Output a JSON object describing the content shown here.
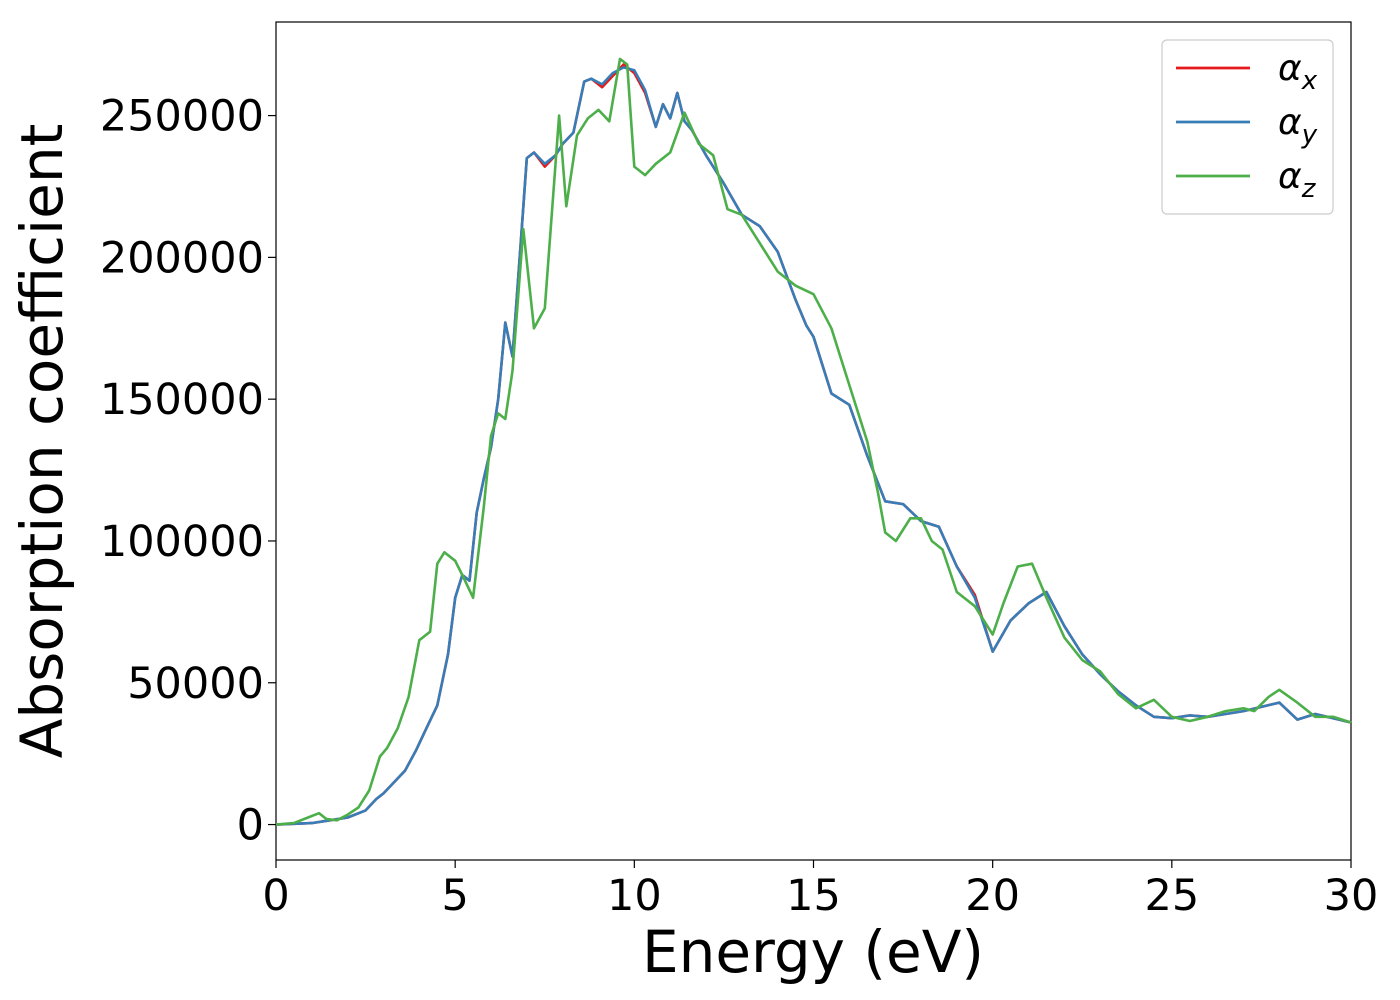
{
  "chart_data": {
    "type": "line",
    "title": "",
    "xlabel": "Energy (eV)",
    "ylabel": "Absorption coefficient",
    "xlim": [
      0,
      30
    ],
    "ylim": [
      -12500,
      283000
    ],
    "xticks": [
      0,
      5,
      10,
      15,
      20,
      25,
      30
    ],
    "yticks": [
      0,
      50000,
      100000,
      150000,
      200000,
      250000
    ],
    "xtick_labels": [
      "0",
      "5",
      "10",
      "15",
      "20",
      "25",
      "30"
    ],
    "ytick_labels": [
      "0",
      "50000",
      "100000",
      "150000",
      "200000",
      "250000"
    ],
    "grid": false,
    "legend_position": "top-right",
    "series": [
      {
        "name": "α",
        "subscript": "x",
        "color": "#e41a1c",
        "x": [
          0,
          1,
          1.5,
          2,
          2.5,
          2.8,
          3,
          3.3,
          3.6,
          3.9,
          4.2,
          4.5,
          4.8,
          5,
          5.2,
          5.4,
          5.6,
          5.8,
          6,
          6.2,
          6.4,
          6.6,
          6.8,
          7,
          7.2,
          7.5,
          7.8,
          8,
          8.3,
          8.6,
          8.8,
          9.1,
          9.4,
          9.7,
          10,
          10.3,
          10.6,
          10.8,
          11,
          11.2,
          11.4,
          11.6,
          12,
          12.5,
          13,
          13.5,
          14,
          14.5,
          14.8,
          15,
          15.5,
          16,
          16.5,
          17,
          17.5,
          18,
          18.5,
          19,
          19.5,
          20,
          20.5,
          21,
          21.5,
          22,
          22.5,
          23,
          23.5,
          24,
          24.5,
          25,
          25.5,
          26,
          26.5,
          27,
          27.5,
          28,
          28.5,
          29,
          29.5,
          30
        ],
        "y": [
          0,
          500,
          1500,
          2500,
          5000,
          9000,
          11000,
          15000,
          19000,
          26000,
          34000,
          42000,
          60000,
          80000,
          88000,
          86000,
          110000,
          122000,
          133000,
          150000,
          177000,
          165000,
          200000,
          235000,
          237000,
          232000,
          236000,
          240000,
          244000,
          262000,
          263000,
          260000,
          264000,
          268000,
          265000,
          258000,
          246000,
          254000,
          249000,
          258000,
          248000,
          245000,
          236000,
          226000,
          215000,
          211000,
          202000,
          185000,
          176000,
          172000,
          152000,
          148000,
          130000,
          114000,
          113000,
          107000,
          105000,
          91000,
          81000,
          61000,
          72000,
          78000,
          82000,
          70000,
          60000,
          53000,
          47000,
          42000,
          38000,
          37500,
          38500,
          38000,
          39000,
          40000,
          41500,
          43000,
          37000,
          39000,
          37500,
          36000
        ]
      },
      {
        "name": "α",
        "subscript": "y",
        "color": "#377eb8",
        "x": [
          0,
          1,
          1.5,
          2,
          2.5,
          2.8,
          3,
          3.3,
          3.6,
          3.9,
          4.2,
          4.5,
          4.8,
          5,
          5.2,
          5.4,
          5.6,
          5.8,
          6,
          6.2,
          6.4,
          6.6,
          6.8,
          7,
          7.2,
          7.5,
          7.8,
          8,
          8.3,
          8.6,
          8.8,
          9.1,
          9.4,
          9.7,
          10,
          10.3,
          10.6,
          10.8,
          11,
          11.2,
          11.4,
          11.6,
          12,
          12.5,
          13,
          13.5,
          14,
          14.5,
          14.8,
          15,
          15.5,
          16,
          16.5,
          17,
          17.5,
          18,
          18.5,
          19,
          19.5,
          20,
          20.5,
          21,
          21.5,
          22,
          22.5,
          23,
          23.5,
          24,
          24.5,
          25,
          25.5,
          26,
          26.5,
          27,
          27.5,
          28,
          28.5,
          29,
          29.5,
          30
        ],
        "y": [
          0,
          500,
          1500,
          2500,
          5000,
          9000,
          11000,
          15000,
          19000,
          26000,
          34000,
          42000,
          60000,
          80000,
          88000,
          86000,
          110000,
          122000,
          133000,
          150000,
          177000,
          165000,
          200000,
          235000,
          237000,
          233000,
          236000,
          240000,
          244000,
          262000,
          263000,
          261000,
          265000,
          267000,
          266000,
          259000,
          246000,
          254000,
          249000,
          258000,
          248000,
          245000,
          236000,
          226000,
          215000,
          211000,
          202000,
          185000,
          176000,
          172000,
          152000,
          148000,
          130000,
          114000,
          113000,
          107000,
          105000,
          91000,
          80000,
          61000,
          72000,
          78000,
          82000,
          70000,
          60000,
          53000,
          47000,
          42000,
          38000,
          37500,
          38500,
          38000,
          39000,
          40000,
          41500,
          43000,
          37000,
          39000,
          37500,
          36000
        ]
      },
      {
        "name": "α",
        "subscript": "z",
        "color": "#4daf4a",
        "x": [
          0,
          0.5,
          1,
          1.2,
          1.4,
          1.7,
          2,
          2.3,
          2.6,
          2.9,
          3.1,
          3.4,
          3.7,
          4,
          4.3,
          4.5,
          4.7,
          5,
          5.2,
          5.5,
          5.8,
          6,
          6.2,
          6.4,
          6.6,
          6.9,
          7.2,
          7.5,
          7.9,
          8.1,
          8.4,
          8.7,
          9,
          9.3,
          9.6,
          9.8,
          10,
          10.3,
          10.6,
          11,
          11.4,
          11.8,
          12.2,
          12.6,
          13,
          13.5,
          14,
          14.5,
          15,
          15.5,
          16,
          16.5,
          16.8,
          17,
          17.3,
          17.7,
          18,
          18.3,
          18.6,
          19,
          19.5,
          20,
          20.3,
          20.7,
          21.1,
          21.5,
          22,
          22.5,
          23,
          23.5,
          24,
          24.5,
          25,
          25.5,
          26,
          26.5,
          27,
          27.3,
          27.7,
          28,
          28.5,
          29,
          29.5,
          30
        ],
        "y": [
          0,
          500,
          3000,
          4000,
          2000,
          1500,
          3500,
          6000,
          12000,
          24000,
          27000,
          34000,
          45000,
          65000,
          68000,
          92000,
          96000,
          93000,
          88000,
          80000,
          112000,
          137000,
          145000,
          143000,
          160000,
          210000,
          175000,
          182000,
          250000,
          218000,
          243000,
          249000,
          252000,
          248000,
          270000,
          268000,
          232000,
          229000,
          233000,
          237000,
          251000,
          240000,
          236000,
          217000,
          215000,
          205000,
          195000,
          190000,
          187000,
          175000,
          155000,
          135000,
          117000,
          103000,
          100000,
          108000,
          108000,
          100000,
          97000,
          82000,
          77000,
          67000,
          78000,
          91000,
          92000,
          80000,
          66000,
          58000,
          54000,
          46000,
          41000,
          44000,
          38000,
          36500,
          38000,
          40000,
          41000,
          40000,
          45000,
          47500,
          43000,
          38000,
          38000,
          36000
        ]
      }
    ]
  }
}
